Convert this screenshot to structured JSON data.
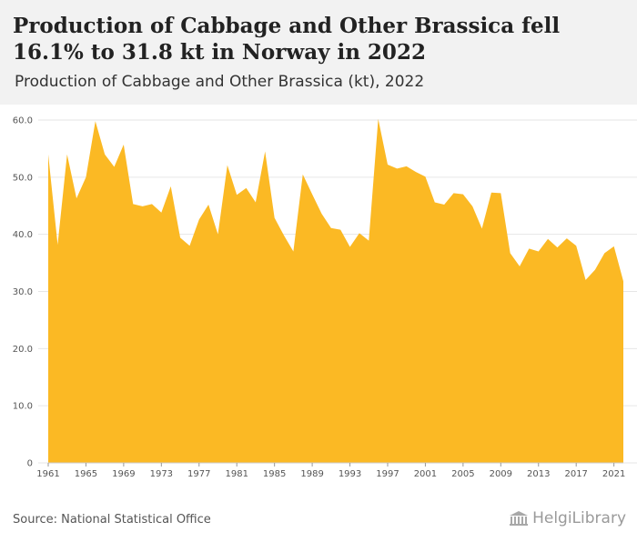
{
  "header": {
    "title": "Production of Cabbage and Other Brassica fell 16.1% to 31.8 kt in Norway in 2022",
    "subtitle": "Production of Cabbage and Other Brassica (kt), 2022"
  },
  "footer": {
    "source": "Source: National Statistical Office",
    "logo_text": "HelgiLibrary",
    "logo_icon": "library-building-icon"
  },
  "colors": {
    "area_fill": "#fbb924",
    "header_bg": "#f2f2f2",
    "grid": "#e6e6e6"
  },
  "chart_data": {
    "type": "area",
    "title": "",
    "xlabel": "",
    "ylabel": "",
    "ylim": [
      0,
      60
    ],
    "xlim": [
      1961,
      2022
    ],
    "grid": "horizontal",
    "y_ticks": [
      "0",
      "10.0",
      "20.0",
      "30.0",
      "40.0",
      "50.0",
      "60.0"
    ],
    "x_ticks": [
      "1961",
      "1965",
      "1969",
      "1973",
      "1977",
      "1981",
      "1985",
      "1989",
      "1993",
      "1997",
      "2001",
      "2005",
      "2009",
      "2013",
      "2017",
      "2021"
    ],
    "series": [
      {
        "x": [
          1961,
          1962,
          1963,
          1964,
          1965,
          1966,
          1967,
          1968,
          1969,
          1970,
          1971,
          1972,
          1973,
          1974,
          1975,
          1976,
          1977,
          1978,
          1979,
          1980,
          1981,
          1982,
          1983,
          1984,
          1985,
          1986,
          1987,
          1988,
          1989,
          1990,
          1991,
          1992,
          1993,
          1994,
          1995,
          1996,
          1997,
          1998,
          1999,
          2000,
          2001,
          2002,
          2003,
          2004,
          2005,
          2006,
          2007,
          2008,
          2009,
          2010,
          2011,
          2012,
          2013,
          2014,
          2015,
          2016,
          2017,
          2018,
          2019,
          2020,
          2021,
          2022
        ],
        "values": [
          54.0,
          38.2,
          54.0,
          46.3,
          50.0,
          59.8,
          54.0,
          51.8,
          55.7,
          45.3,
          44.9,
          45.3,
          43.8,
          48.4,
          39.4,
          38.0,
          42.6,
          45.2,
          40.0,
          52.1,
          46.9,
          48.1,
          45.6,
          54.5,
          42.9,
          39.8,
          37.0,
          50.5,
          47.0,
          43.6,
          41.1,
          40.8,
          37.8,
          40.2,
          38.9,
          60.2,
          52.2,
          51.5,
          51.9,
          50.9,
          50.1,
          45.6,
          45.2,
          47.2,
          47.0,
          44.9,
          41.0,
          47.3,
          47.2,
          36.7,
          34.4,
          37.5,
          37.0,
          39.2,
          37.7,
          39.3,
          38.0,
          32.0,
          33.8,
          36.7,
          37.9,
          31.8
        ]
      }
    ]
  }
}
